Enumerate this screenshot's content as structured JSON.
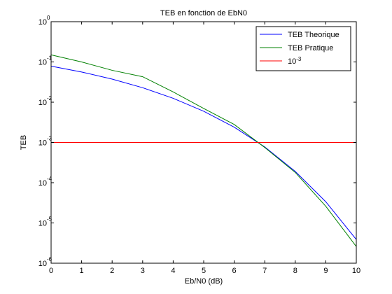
{
  "chart_data": {
    "type": "line",
    "title": "TEB en fonction de EbN0",
    "xlabel": "Eb/N0 (dB)",
    "ylabel": "TEB",
    "xlim": [
      0,
      10
    ],
    "ylim": [
      1e-06,
      1
    ],
    "yscale": "log",
    "grid": false,
    "legend_position": "top-right",
    "x_ticks": [
      "0",
      "1",
      "2",
      "3",
      "4",
      "5",
      "6",
      "7",
      "8",
      "9",
      "10"
    ],
    "y_ticks": [
      {
        "base": "10",
        "exp": "0",
        "value": 1
      },
      {
        "base": "10",
        "exp": "-1",
        "value": 0.1
      },
      {
        "base": "10",
        "exp": "-2",
        "value": 0.01
      },
      {
        "base": "10",
        "exp": "-3",
        "value": 0.001
      },
      {
        "base": "10",
        "exp": "-4",
        "value": 0.0001
      },
      {
        "base": "10",
        "exp": "-5",
        "value": 1e-05
      },
      {
        "base": "10",
        "exp": "-6",
        "value": 1e-06
      }
    ],
    "series": [
      {
        "name": "TEB Theorique",
        "color": "#0000ff",
        "x": [
          0,
          1,
          2,
          3,
          4,
          5,
          6,
          7,
          8,
          9,
          10
        ],
        "y": [
          0.0786,
          0.0563,
          0.0375,
          0.0229,
          0.0125,
          0.00595,
          0.00239,
          0.000773,
          0.000191,
          3.36e-05,
          3.87e-06
        ]
      },
      {
        "name": "TEB Pratique",
        "color": "#008000",
        "x": [
          0,
          1,
          2,
          3,
          4,
          5,
          6,
          7,
          8,
          9,
          10
        ],
        "y": [
          0.15,
          0.1,
          0.062,
          0.043,
          0.018,
          0.007,
          0.0028,
          0.00075,
          0.00018,
          2.6e-05,
          2.6e-06
        ]
      },
      {
        "name": "10",
        "name_sup": "-3",
        "color": "#ff0000",
        "x": [
          0,
          10
        ],
        "y": [
          0.001,
          0.001
        ]
      }
    ]
  }
}
